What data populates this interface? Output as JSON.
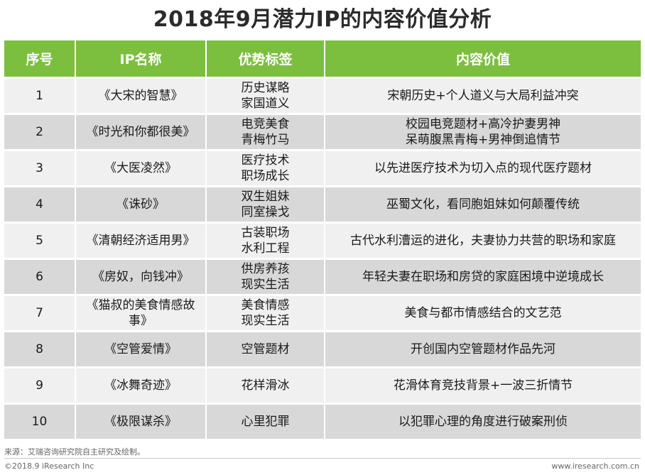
{
  "title": "2018年9月潜力IP的内容价值分析",
  "table": {
    "headers": [
      "序号",
      "IP名称",
      "优势标签",
      "内容价值"
    ],
    "rows": [
      {
        "no": "1",
        "name": "《大宋的智慧》",
        "tags": "历史谋略\n家国道义",
        "value": "宋朝历史+个人道义与大局利益冲突"
      },
      {
        "no": "2",
        "name": "《时光和你都很美》",
        "tags": "电竞美食\n青梅竹马",
        "value": "校园电竞题材+高冷护妻男神\n呆萌腹黑青梅+男神倒追情节"
      },
      {
        "no": "3",
        "name": "《大医凌然》",
        "tags": "医疗技术\n职场成长",
        "value": "以先进医疗技术为切入点的现代医疗题材"
      },
      {
        "no": "4",
        "name": "《诛砂》",
        "tags": "双生姐妹\n同室操戈",
        "value": "巫蜀文化，看同胞姐妹如何颠覆传统"
      },
      {
        "no": "5",
        "name": "《清朝经济适用男》",
        "tags": "古装职场\n水利工程",
        "value": "古代水利漕运的进化，夫妻协力共营的职场和家庭"
      },
      {
        "no": "6",
        "name": "《房奴，向钱冲》",
        "tags": "供房养孩\n现实生活",
        "value": "年轻夫妻在职场和房贷的家庭困境中逆境成长"
      },
      {
        "no": "7",
        "name": "《猫叔的美食情感故\n事》",
        "tags": "美食情感\n现实生活",
        "value": "美食与都市情感结合的文艺范"
      },
      {
        "no": "8",
        "name": "《空管爱情》",
        "tags": "空管题材",
        "value": "开创国内空管题材作品先河"
      },
      {
        "no": "9",
        "name": "《冰舞奇迹》",
        "tags": "花样滑冰",
        "value": "花滑体育竞技背景+一波三折情节"
      },
      {
        "no": "10",
        "name": "《极限谋杀》",
        "tags": "心里犯罪",
        "value": "以犯罪心理的角度进行破案刑侦"
      }
    ]
  },
  "footer": {
    "source": "来源：艾瑞咨询研究院自主研究及绘制。",
    "copyright": "©2018.9 iResearch Inc",
    "website": "www.iresearch.com.cn"
  },
  "colors": {
    "header_bg": "#7cbf3f",
    "row_light": "#f0f0f0",
    "row_dark": "#d8d8d8"
  }
}
